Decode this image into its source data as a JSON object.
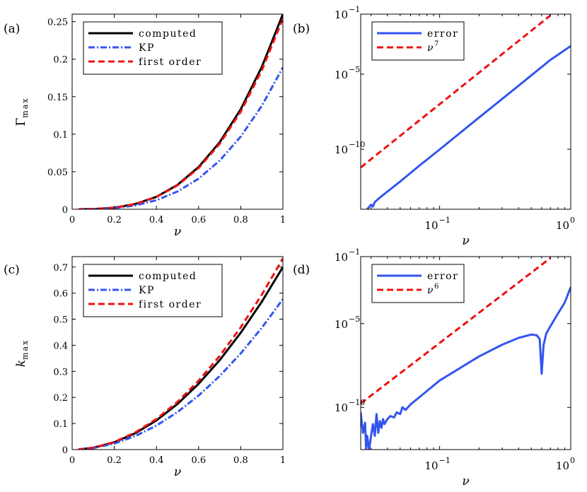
{
  "chart_data": [
    {
      "panel": "(a)",
      "type": "line",
      "xscale": "linear",
      "yscale": "linear",
      "xlim": [
        0,
        1
      ],
      "ylim": [
        0,
        0.26
      ],
      "xticks": [
        0,
        0.2,
        0.4,
        0.6,
        0.8,
        1
      ],
      "xtick_labels": [
        "0",
        "0.2",
        "0.4",
        "0.6",
        "0.8",
        "1"
      ],
      "yticks": [
        0,
        0.05,
        0.1,
        0.15,
        0.2,
        0.25
      ],
      "ytick_labels": [
        "0",
        "0.05",
        "0.1",
        "0.15",
        "0.2",
        "0.25"
      ],
      "xlabel": "ν",
      "ylabel": "Γ",
      "ylabel_sub": "max",
      "legend_position": "top-left",
      "series": [
        {
          "name": "computed",
          "color": "#000000",
          "style": "solid",
          "x": [
            0.03,
            0.1,
            0.2,
            0.3,
            0.4,
            0.5,
            0.6,
            0.7,
            0.8,
            0.9,
            1.0
          ],
          "y": [
            0,
            0.00026,
            0.0021,
            0.007,
            0.0166,
            0.0325,
            0.0562,
            0.0892,
            0.1332,
            0.1896,
            0.26
          ]
        },
        {
          "name": "KP",
          "color": "#3355ee",
          "style": "dashdot",
          "x": [
            0.03,
            0.1,
            0.2,
            0.3,
            0.4,
            0.5,
            0.6,
            0.7,
            0.8,
            0.9,
            1.0
          ],
          "y": [
            0,
            0.00019,
            0.0015,
            0.0051,
            0.0121,
            0.0236,
            0.0408,
            0.0648,
            0.0968,
            0.1378,
            0.189
          ]
        },
        {
          "name": "first order",
          "color": "#ee1111",
          "style": "dashed",
          "x": [
            0.03,
            0.1,
            0.2,
            0.3,
            0.4,
            0.5,
            0.6,
            0.7,
            0.8,
            0.9,
            1.0
          ],
          "y": [
            0,
            0.00025,
            0.00203,
            0.0069,
            0.0163,
            0.0318,
            0.0549,
            0.0871,
            0.13,
            0.1852,
            0.254
          ]
        }
      ]
    },
    {
      "panel": "(b)",
      "type": "line",
      "xscale": "log",
      "yscale": "log",
      "xlim": [
        0.025,
        1
      ],
      "ylim": [
        1e-14,
        0.1
      ],
      "xticks": [
        0.1,
        1
      ],
      "xtick_labels": [
        [
          "10",
          "−1"
        ],
        [
          "10",
          "0"
        ]
      ],
      "yticks": [
        1e-10,
        1e-05,
        0.1
      ],
      "ytick_labels": [
        [
          "10",
          "−10"
        ],
        [
          "10",
          "−5"
        ],
        [
          "10",
          "−1"
        ]
      ],
      "xlabel": "ν",
      "legend_position": "top-left",
      "series": [
        {
          "name": "error",
          "color": "#3355ee",
          "style": "solid",
          "x": [
            0.028,
            0.03,
            0.031,
            0.032,
            0.035,
            0.04,
            0.05,
            0.07,
            0.1,
            0.2,
            0.4,
            0.7,
            1.0
          ],
          "y": [
            1e-14,
            2e-14,
            1.5e-14,
            3e-14,
            6e-14,
            1.5e-13,
            7e-13,
            8e-12,
            9.5e-11,
            1.3e-08,
            1.7e-06,
            9e-05,
            0.00075
          ]
        },
        {
          "name": "ν^7",
          "label_base": "ν",
          "label_exp": "7",
          "color": "#ee1111",
          "style": "dashed",
          "x": [
            0.025,
            0.7
          ],
          "y": [
            6.1e-12,
            0.0824
          ]
        }
      ]
    },
    {
      "panel": "(c)",
      "type": "line",
      "xscale": "linear",
      "yscale": "linear",
      "xlim": [
        0,
        1
      ],
      "ylim": [
        0,
        0.74
      ],
      "xticks": [
        0,
        0.2,
        0.4,
        0.6,
        0.8,
        1
      ],
      "xtick_labels": [
        "0",
        "0.2",
        "0.4",
        "0.6",
        "0.8",
        "1"
      ],
      "yticks": [
        0,
        0.1,
        0.2,
        0.3,
        0.4,
        0.5,
        0.6,
        0.7
      ],
      "ytick_labels": [
        "0",
        "0.1",
        "0.2",
        "0.3",
        "0.4",
        "0.5",
        "0.6",
        "0.7"
      ],
      "xlabel": "ν",
      "ylabel": "k",
      "ylabel_sub": "max",
      "legend_position": "top-left",
      "series": [
        {
          "name": "computed",
          "color": "#000000",
          "style": "solid",
          "x": [
            0.03,
            0.1,
            0.2,
            0.3,
            0.4,
            0.5,
            0.6,
            0.7,
            0.8,
            0.9,
            1.0
          ],
          "y": [
            0.0006,
            0.007,
            0.028,
            0.063,
            0.112,
            0.175,
            0.252,
            0.343,
            0.448,
            0.567,
            0.7
          ]
        },
        {
          "name": "KP",
          "color": "#3355ee",
          "style": "dashdot",
          "x": [
            0.03,
            0.1,
            0.2,
            0.3,
            0.4,
            0.5,
            0.6,
            0.7,
            0.8,
            0.9,
            1.0
          ],
          "y": [
            0.0005,
            0.0058,
            0.023,
            0.052,
            0.092,
            0.144,
            0.207,
            0.282,
            0.369,
            0.467,
            0.577
          ]
        },
        {
          "name": "first order",
          "color": "#ee1111",
          "style": "dashed",
          "x": [
            0.03,
            0.1,
            0.2,
            0.3,
            0.4,
            0.5,
            0.6,
            0.7,
            0.8,
            0.9,
            1.0
          ],
          "y": [
            0.0006,
            0.0073,
            0.029,
            0.066,
            0.117,
            0.183,
            0.264,
            0.359,
            0.469,
            0.594,
            0.733
          ]
        }
      ]
    },
    {
      "panel": "(d)",
      "type": "line",
      "xscale": "log",
      "yscale": "log",
      "xlim": [
        0.025,
        1
      ],
      "ylim": [
        3e-13,
        0.1
      ],
      "xticks": [
        0.1,
        1
      ],
      "xtick_labels": [
        [
          "10",
          "−1"
        ],
        [
          "10",
          "0"
        ]
      ],
      "yticks": [
        1e-10,
        1e-05,
        0.1
      ],
      "ytick_labels": [
        [
          "10",
          "−10"
        ],
        [
          "10",
          "−5"
        ],
        [
          "10",
          "−1"
        ]
      ],
      "xlabel": "ν",
      "legend_position": "top-left",
      "series": [
        {
          "name": "error",
          "color": "#3355ee",
          "style": "solid",
          "x": [
            0.025,
            0.026,
            0.027,
            0.0275,
            0.028,
            0.029,
            0.03,
            0.031,
            0.032,
            0.033,
            0.034,
            0.035,
            0.036,
            0.037,
            0.038,
            0.04,
            0.042,
            0.045,
            0.047,
            0.05,
            0.052,
            0.055,
            0.06,
            0.07,
            0.1,
            0.2,
            0.3,
            0.4,
            0.5,
            0.55,
            0.58,
            0.6,
            0.62,
            0.65,
            0.7,
            0.8,
            0.9,
            1.0
          ],
          "y": [
            5e-11,
            3e-12,
            1.2e-11,
            3e-13,
            2e-12,
            3e-13,
            2e-12,
            1e-11,
            2e-12,
            4e-11,
            3e-12,
            1.5e-11,
            6e-12,
            2e-11,
            1e-11,
            2e-11,
            3e-11,
            2.5e-11,
            5e-11,
            4e-11,
            1e-10,
            7e-11,
            1.5e-10,
            4e-10,
            4e-09,
            1.1e-07,
            5.5e-07,
            1.4e-06,
            2.2e-06,
            2e-06,
            1.2e-06,
            1e-08,
            5e-07,
            2.5e-06,
            7e-06,
            4e-05,
            0.00018,
            0.0015
          ]
        },
        {
          "name": "ν^6",
          "label_base": "ν",
          "label_exp": "6",
          "color": "#ee1111",
          "style": "dashed",
          "x": [
            0.025,
            0.7
          ],
          "y": [
            1.7e-10,
            0.082
          ]
        }
      ]
    }
  ]
}
